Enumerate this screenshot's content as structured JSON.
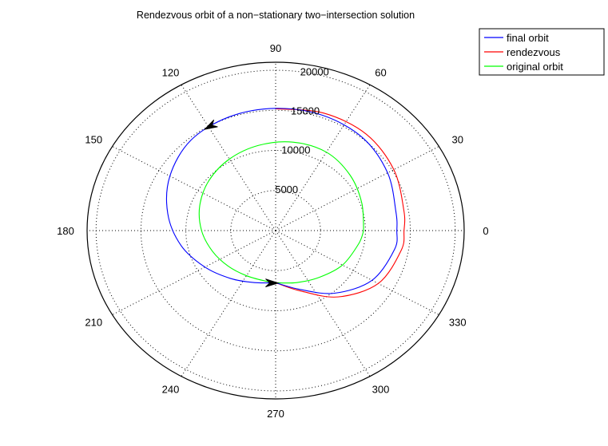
{
  "chart_data": {
    "type": "polar-line",
    "title": "Rendezvous orbit of a non−stationary two−intersection solution",
    "angle_ticks": [
      {
        "deg": 0,
        "label": "0"
      },
      {
        "deg": 30,
        "label": "30"
      },
      {
        "deg": 60,
        "label": "60"
      },
      {
        "deg": 90,
        "label": "90"
      },
      {
        "deg": 120,
        "label": "120"
      },
      {
        "deg": 150,
        "label": "150"
      },
      {
        "deg": 180,
        "label": "180"
      },
      {
        "deg": 210,
        "label": "210"
      },
      {
        "deg": 240,
        "label": "240"
      },
      {
        "deg": 270,
        "label": "270"
      },
      {
        "deg": 300,
        "label": "300"
      },
      {
        "deg": 330,
        "label": "330"
      }
    ],
    "radial_ticks": [
      {
        "value": 5000,
        "label": "5000"
      },
      {
        "value": 10000,
        "label": "10000"
      },
      {
        "value": 15000,
        "label": "15000"
      },
      {
        "value": 20000,
        "label": "20000"
      }
    ],
    "r_max": 21000,
    "grid": true,
    "legend_position": "top-right",
    "series": [
      {
        "name": "final orbit",
        "color": "#0000ff",
        "points": [
          [
            270,
            6500
          ],
          [
            290,
            7800
          ],
          [
            310,
            10200
          ],
          [
            330,
            12400
          ],
          [
            350,
            13450
          ],
          [
            0,
            13500
          ],
          [
            10,
            13600
          ],
          [
            30,
            14400
          ],
          [
            50,
            15100
          ],
          [
            70,
            15300
          ],
          [
            90,
            15250
          ],
          [
            110,
            15100
          ],
          [
            130,
            14700
          ],
          [
            150,
            13600
          ],
          [
            170,
            12200
          ],
          [
            190,
            10700
          ],
          [
            210,
            9100
          ],
          [
            230,
            7800
          ],
          [
            250,
            6900
          ],
          [
            270,
            6500
          ]
        ]
      },
      {
        "name": "rendezvous",
        "color": "#ff0000",
        "points": [
          [
            270,
            6500
          ],
          [
            290,
            8000
          ],
          [
            310,
            10800
          ],
          [
            330,
            13200
          ],
          [
            350,
            14200
          ],
          [
            0,
            14300
          ],
          [
            10,
            14500
          ],
          [
            30,
            15200
          ],
          [
            50,
            15700
          ],
          [
            70,
            15600
          ],
          [
            90,
            15200
          ]
        ]
      },
      {
        "name": "original orbit",
        "color": "#00ff00",
        "points": [
          [
            0,
            9800
          ],
          [
            20,
            10200
          ],
          [
            40,
            10800
          ],
          [
            60,
            11300
          ],
          [
            80,
            11200
          ],
          [
            100,
            10800
          ],
          [
            120,
            10300
          ],
          [
            140,
            9700
          ],
          [
            160,
            9000
          ],
          [
            180,
            8250
          ],
          [
            200,
            7500
          ],
          [
            220,
            6900
          ],
          [
            240,
            6500
          ],
          [
            260,
            6400
          ],
          [
            270,
            6500
          ],
          [
            290,
            6900
          ],
          [
            310,
            7600
          ],
          [
            330,
            8600
          ],
          [
            350,
            9400
          ],
          [
            360,
            9800
          ]
        ]
      }
    ],
    "arrows": [
      {
        "series": "final orbit",
        "deg": 120
      },
      {
        "series": "final orbit",
        "deg": 268
      }
    ]
  }
}
